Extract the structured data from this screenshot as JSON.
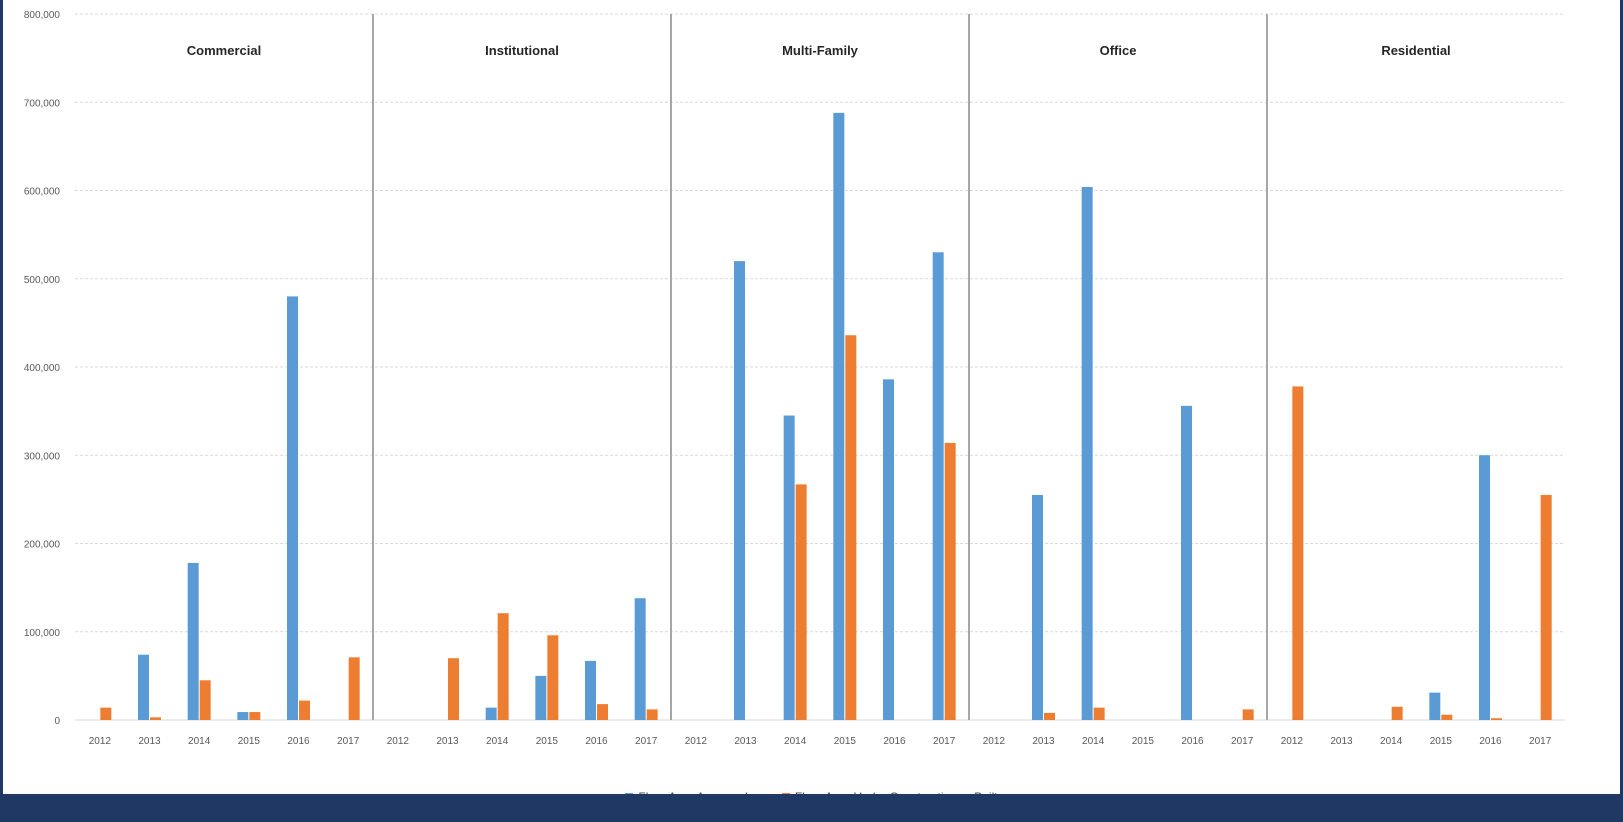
{
  "chart_data": {
    "type": "bar",
    "title": "",
    "xlabel": "",
    "ylabel": "",
    "ylim": [
      0,
      800000
    ],
    "yticks": [
      "0",
      "100,000",
      "200,000",
      "300,000",
      "400,000",
      "500,000",
      "600,000",
      "700,000",
      "800,000"
    ],
    "grid": true,
    "legend_position": "bottom",
    "years": [
      "2012",
      "2013",
      "2014",
      "2015",
      "2016",
      "2017"
    ],
    "panels": [
      {
        "name": "Commercial",
        "series": [
          {
            "name": "Floor Area Approved",
            "values": [
              0,
              74000,
              178000,
              9000,
              480000,
              0
            ]
          },
          {
            "name": "Floor Area Under Construction or Built",
            "values": [
              14000,
              3000,
              45000,
              9000,
              22000,
              71000
            ]
          }
        ]
      },
      {
        "name": "Institutional",
        "series": [
          {
            "name": "Floor Area Approved",
            "values": [
              0,
              0,
              14000,
              50000,
              67000,
              138000
            ]
          },
          {
            "name": "Floor Area Under Construction or Built",
            "values": [
              0,
              70000,
              121000,
              96000,
              18000,
              12000
            ]
          }
        ]
      },
      {
        "name": "Multi-Family",
        "series": [
          {
            "name": "Floor Area Approved",
            "values": [
              0,
              520000,
              345000,
              688000,
              386000,
              530000
            ]
          },
          {
            "name": "Floor Area Under Construction or Built",
            "values": [
              0,
              0,
              267000,
              436000,
              0,
              314000
            ]
          }
        ]
      },
      {
        "name": "Office",
        "series": [
          {
            "name": "Floor Area Approved",
            "values": [
              0,
              255000,
              604000,
              0,
              356000,
              0
            ]
          },
          {
            "name": "Floor Area Under Construction or Built",
            "values": [
              0,
              8000,
              14000,
              0,
              0,
              12000
            ]
          }
        ]
      },
      {
        "name": "Residential",
        "series": [
          {
            "name": "Floor Area Approved",
            "values": [
              0,
              0,
              0,
              31000,
              300000,
              0
            ]
          },
          {
            "name": "Floor Area Under Construction or Built",
            "values": [
              378000,
              0,
              15000,
              6000,
              2000,
              255000
            ]
          }
        ]
      }
    ],
    "colors": {
      "approved": "#5b9bd5",
      "built": "#ed7d31",
      "grid": "#d9d9d9",
      "separator": "#a6a6a6",
      "text": "#595959"
    }
  },
  "legend": {
    "approved_label": "Floor Area Approved",
    "built_label": "Floor Area Under Construction or Built"
  }
}
